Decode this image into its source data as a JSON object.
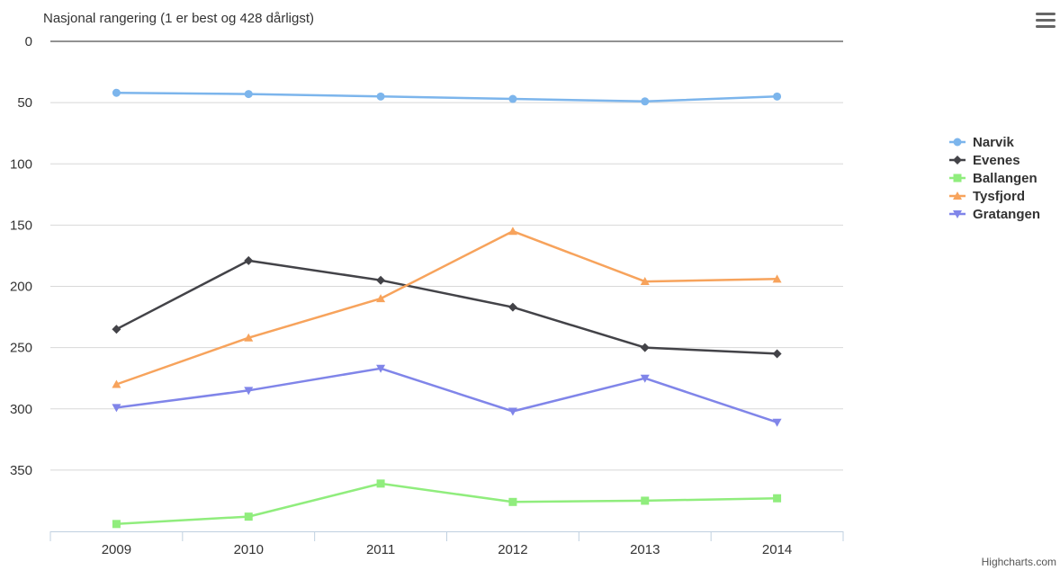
{
  "chart_data": {
    "type": "line",
    "ylabel": "Nasjonal rangering (1 er best og 428 dårligst)",
    "xlabel": "",
    "categories": [
      "2009",
      "2010",
      "2011",
      "2012",
      "2013",
      "2014"
    ],
    "y_reversed": true,
    "ylim": [
      0,
      400
    ],
    "yticks": [
      0,
      50,
      100,
      150,
      200,
      250,
      300,
      350
    ],
    "grid": true,
    "legend_position": "right",
    "series": [
      {
        "name": "Narvik",
        "color": "#7cb5ec",
        "marker": "circle",
        "values": [
          42,
          43,
          45,
          47,
          49,
          45
        ]
      },
      {
        "name": "Evenes",
        "color": "#434348",
        "marker": "diamond",
        "values": [
          235,
          179,
          195,
          217,
          250,
          255
        ]
      },
      {
        "name": "Ballangen",
        "color": "#90ed7d",
        "marker": "square",
        "values": [
          394,
          388,
          361,
          376,
          375,
          373
        ]
      },
      {
        "name": "Tysfjord",
        "color": "#f7a35c",
        "marker": "triangle",
        "values": [
          280,
          242,
          210,
          155,
          196,
          194
        ]
      },
      {
        "name": "Gratangen",
        "color": "#8085e9",
        "marker": "triangle-down",
        "values": [
          299,
          285,
          267,
          302,
          275,
          311
        ]
      }
    ]
  },
  "credits": "Highcharts.com",
  "menu_icon": "hamburger-menu-icon"
}
